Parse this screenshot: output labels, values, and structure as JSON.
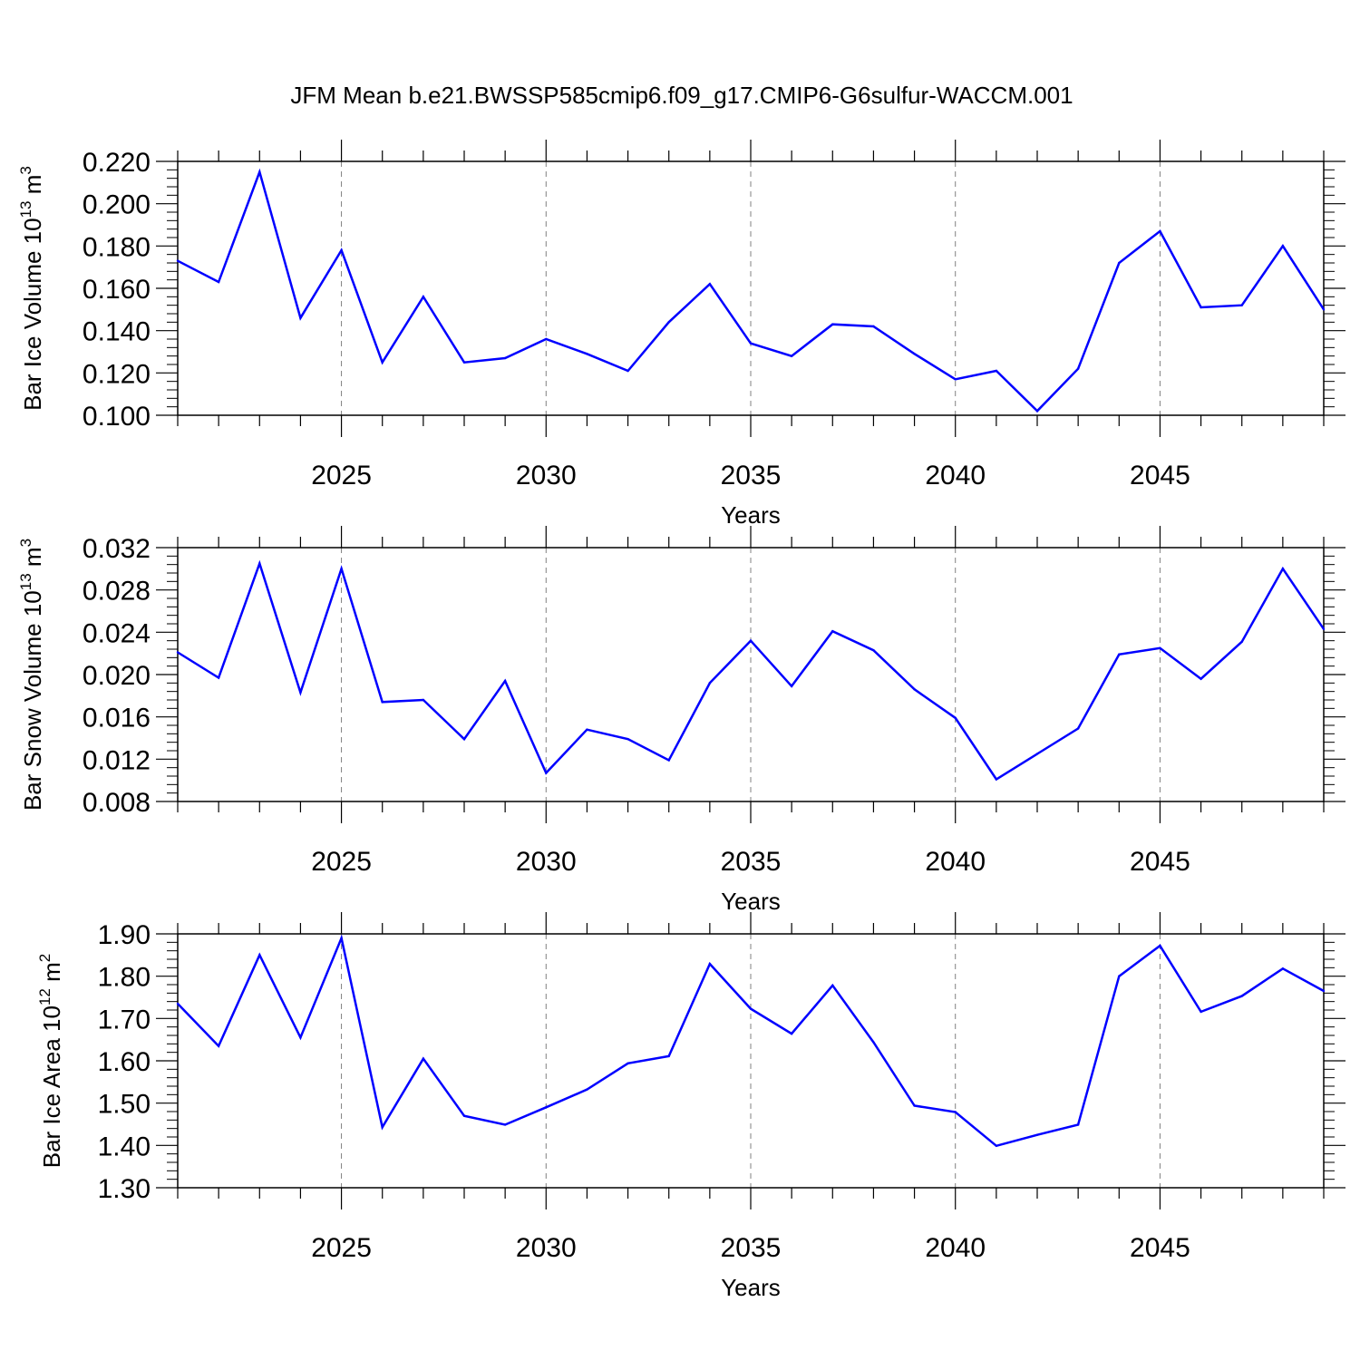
{
  "title": "JFM Mean b.e21.BWSSP585cmip6.f09_g17.CMIP6-G6sulfur-WACCM.001",
  "line_color": "#0000ff",
  "chart_data": [
    {
      "type": "line",
      "xlabel": "Years",
      "ylabel": {
        "prefix": "Bar Ice Volume 10",
        "exponent": "13",
        "unit": " m",
        "unit_exponent": "3"
      },
      "xlim": [
        2021,
        2049
      ],
      "ylim": [
        0.1,
        0.22
      ],
      "y_ticks": [
        "0.100",
        "0.120",
        "0.140",
        "0.160",
        "0.180",
        "0.200",
        "0.220"
      ],
      "x_ticks": [
        "2025",
        "2030",
        "2035",
        "2040",
        "2045"
      ],
      "grid": "vertical dashed at major x ticks",
      "x": [
        2021,
        2022,
        2023,
        2024,
        2025,
        2026,
        2027,
        2028,
        2029,
        2030,
        2031,
        2032,
        2033,
        2034,
        2035,
        2036,
        2037,
        2038,
        2039,
        2040,
        2041,
        2042,
        2043,
        2044,
        2045,
        2046,
        2047,
        2048,
        2049
      ],
      "values": [
        0.173,
        0.163,
        0.215,
        0.146,
        0.178,
        0.125,
        0.156,
        0.125,
        0.127,
        0.136,
        0.129,
        0.121,
        0.144,
        0.162,
        0.134,
        0.128,
        0.143,
        0.142,
        0.129,
        0.117,
        0.121,
        0.102,
        0.122,
        0.172,
        0.187,
        0.151,
        0.152,
        0.18,
        0.15
      ]
    },
    {
      "type": "line",
      "xlabel": "Years",
      "ylabel": {
        "prefix": "Bar Snow Volume 10",
        "exponent": "13",
        "unit": " m",
        "unit_exponent": "3"
      },
      "xlim": [
        2021,
        2049
      ],
      "ylim": [
        0.008,
        0.032
      ],
      "y_ticks": [
        "0.008",
        "0.012",
        "0.016",
        "0.020",
        "0.024",
        "0.028",
        "0.032"
      ],
      "x_ticks": [
        "2025",
        "2030",
        "2035",
        "2040",
        "2045"
      ],
      "grid": "vertical dashed at major x ticks",
      "x": [
        2021,
        2022,
        2023,
        2024,
        2025,
        2026,
        2027,
        2028,
        2029,
        2030,
        2031,
        2032,
        2033,
        2034,
        2035,
        2036,
        2037,
        2038,
        2039,
        2040,
        2041,
        2042,
        2043,
        2044,
        2045,
        2046,
        2047,
        2048,
        2049
      ],
      "values": [
        0.0221,
        0.0197,
        0.0305,
        0.0183,
        0.03,
        0.0174,
        0.0176,
        0.0139,
        0.0194,
        0.0107,
        0.0148,
        0.0139,
        0.0119,
        0.0192,
        0.0232,
        0.0189,
        0.0241,
        0.0223,
        0.0186,
        0.0159,
        0.0101,
        0.0125,
        0.0149,
        0.0219,
        0.0225,
        0.0196,
        0.0231,
        0.03,
        0.0243
      ]
    },
    {
      "type": "line",
      "xlabel": "Years",
      "ylabel": {
        "prefix": "Bar Ice Area 10",
        "exponent": "12",
        "unit": " m",
        "unit_exponent": "2"
      },
      "xlim": [
        2021,
        2049
      ],
      "ylim": [
        1.3,
        1.9
      ],
      "y_ticks": [
        "1.30",
        "1.40",
        "1.50",
        "1.60",
        "1.70",
        "1.80",
        "1.90"
      ],
      "x_ticks": [
        "2025",
        "2030",
        "2035",
        "2040",
        "2045"
      ],
      "grid": "vertical dashed at major x ticks",
      "x": [
        2021,
        2022,
        2023,
        2024,
        2025,
        2026,
        2027,
        2028,
        2029,
        2030,
        2031,
        2032,
        2033,
        2034,
        2035,
        2036,
        2037,
        2038,
        2039,
        2040,
        2041,
        2042,
        2043,
        2044,
        2045,
        2046,
        2047,
        2048,
        2049
      ],
      "values": [
        1.735,
        1.635,
        1.85,
        1.655,
        1.89,
        1.443,
        1.605,
        1.47,
        1.449,
        1.49,
        1.532,
        1.594,
        1.611,
        1.829,
        1.723,
        1.664,
        1.778,
        1.644,
        1.494,
        1.479,
        1.399,
        1.425,
        1.449,
        1.8,
        1.872,
        1.716,
        1.753,
        1.818,
        1.765
      ]
    }
  ]
}
